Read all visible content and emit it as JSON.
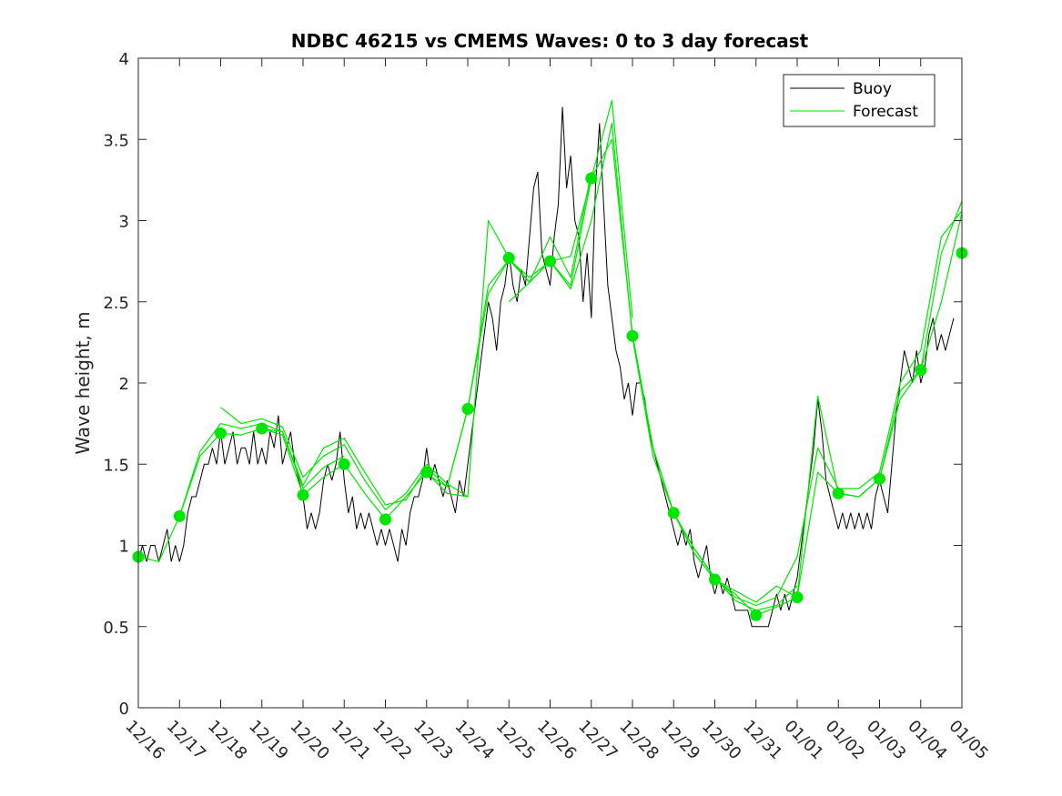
{
  "chart_data": {
    "type": "line",
    "title": "NDBC 46215 vs CMEMS Waves: 0 to 3 day forecast",
    "xlabel": "",
    "ylabel": "Wave height, m",
    "ylim": [
      0,
      4
    ],
    "xlim": [
      0,
      20
    ],
    "yticks": [
      0,
      0.5,
      1,
      1.5,
      2,
      2.5,
      3,
      3.5,
      4
    ],
    "ytick_labels": [
      "0",
      "0.5",
      "1",
      "1.5",
      "2",
      "2.5",
      "3",
      "3.5",
      "4"
    ],
    "xtick_labels": [
      "12/16",
      "12/17",
      "12/18",
      "12/19",
      "12/20",
      "12/21",
      "12/22",
      "12/23",
      "12/24",
      "12/25",
      "12/26",
      "12/27",
      "12/28",
      "12/29",
      "12/30",
      "12/31",
      "01/01",
      "01/02",
      "01/03",
      "01/04",
      "01/05"
    ],
    "grid": false,
    "legend": {
      "location": "top-right",
      "entries": [
        "Buoy",
        "Forecast"
      ]
    },
    "colors": {
      "buoy": "#000000",
      "forecast": "#00e600",
      "axes": "#262626"
    },
    "series": [
      {
        "name": "Buoy",
        "color": "#000000",
        "x": [
          0,
          0.1,
          0.2,
          0.3,
          0.4,
          0.5,
          0.6,
          0.7,
          0.8,
          0.9,
          1.0,
          1.1,
          1.2,
          1.3,
          1.4,
          1.5,
          1.6,
          1.7,
          1.8,
          1.9,
          2.0,
          2.1,
          2.2,
          2.3,
          2.4,
          2.5,
          2.6,
          2.7,
          2.8,
          2.9,
          3.0,
          3.1,
          3.2,
          3.3,
          3.4,
          3.5,
          3.6,
          3.7,
          3.8,
          3.9,
          4.0,
          4.1,
          4.2,
          4.3,
          4.4,
          4.5,
          4.6,
          4.7,
          4.8,
          4.9,
          5.0,
          5.1,
          5.2,
          5.3,
          5.4,
          5.5,
          5.6,
          5.7,
          5.8,
          5.9,
          6.0,
          6.1,
          6.2,
          6.3,
          6.4,
          6.5,
          6.6,
          6.7,
          6.8,
          6.9,
          7.0,
          7.1,
          7.2,
          7.3,
          7.4,
          7.5,
          7.6,
          7.7,
          7.8,
          7.9,
          8.0,
          8.1,
          8.2,
          8.3,
          8.4,
          8.5,
          8.6,
          8.7,
          8.8,
          8.9,
          9.0,
          9.1,
          9.2,
          9.3,
          9.4,
          9.5,
          9.6,
          9.7,
          9.8,
          9.9,
          10.0,
          10.1,
          10.2,
          10.3,
          10.4,
          10.5,
          10.6,
          10.7,
          10.8,
          10.9,
          11.0,
          11.1,
          11.2,
          11.3,
          11.4,
          11.5,
          11.6,
          11.7,
          11.8,
          11.9,
          12.0,
          12.1,
          12.2,
          12.3,
          12.4,
          12.5,
          12.6,
          12.7,
          12.8,
          12.9,
          13.0,
          13.1,
          13.2,
          13.3,
          13.4,
          13.5,
          13.6,
          13.7,
          13.8,
          13.9,
          14.0,
          14.1,
          14.2,
          14.3,
          14.4,
          14.5,
          14.6,
          14.7,
          14.8,
          14.9,
          15.0,
          15.1,
          15.2,
          15.3,
          15.4,
          15.5,
          15.6,
          15.7,
          15.8,
          15.9,
          16.0,
          16.1,
          16.2,
          16.3,
          16.4,
          16.5,
          16.6,
          16.7,
          16.8,
          16.9,
          17.0,
          17.1,
          17.2,
          17.3,
          17.4,
          17.5,
          17.6,
          17.7,
          17.8,
          17.9,
          18.0,
          18.1,
          18.2,
          18.3,
          18.4,
          18.5,
          18.6,
          18.7,
          18.8,
          18.9,
          19.0,
          19.1,
          19.2,
          19.3,
          19.4,
          19.5,
          19.6,
          19.7,
          19.8
        ],
        "values": [
          0.9,
          1.0,
          0.9,
          1.0,
          1.0,
          0.9,
          1.0,
          1.1,
          0.9,
          1.0,
          0.9,
          1.0,
          1.2,
          1.3,
          1.3,
          1.4,
          1.5,
          1.5,
          1.6,
          1.5,
          1.7,
          1.5,
          1.6,
          1.7,
          1.5,
          1.6,
          1.6,
          1.5,
          1.7,
          1.5,
          1.6,
          1.5,
          1.7,
          1.6,
          1.8,
          1.5,
          1.6,
          1.7,
          1.5,
          1.4,
          1.3,
          1.1,
          1.2,
          1.1,
          1.2,
          1.4,
          1.5,
          1.4,
          1.5,
          1.7,
          1.4,
          1.2,
          1.3,
          1.1,
          1.2,
          1.1,
          1.2,
          1.1,
          1.0,
          1.1,
          1.0,
          1.1,
          1.0,
          0.9,
          1.1,
          1.0,
          1.2,
          1.3,
          1.3,
          1.4,
          1.6,
          1.4,
          1.5,
          1.4,
          1.3,
          1.4,
          1.3,
          1.2,
          1.4,
          1.3,
          1.5,
          1.7,
          1.9,
          2.1,
          2.3,
          2.5,
          2.4,
          2.2,
          2.5,
          2.6,
          2.8,
          2.6,
          2.5,
          2.7,
          2.6,
          2.9,
          3.2,
          3.3,
          2.8,
          2.7,
          2.6,
          2.9,
          3.1,
          3.7,
          3.2,
          3.4,
          3.0,
          2.9,
          2.5,
          2.8,
          2.4,
          3.2,
          3.6,
          3.1,
          2.6,
          2.4,
          2.2,
          2.1,
          1.9,
          2.0,
          1.8,
          2.0,
          2.0,
          1.9,
          1.7,
          1.6,
          1.5,
          1.4,
          1.3,
          1.2,
          1.1,
          1.0,
          1.1,
          1.0,
          1.1,
          0.9,
          0.8,
          0.9,
          1.0,
          0.8,
          0.7,
          0.8,
          0.7,
          0.8,
          0.7,
          0.6,
          0.6,
          0.6,
          0.6,
          0.5,
          0.5,
          0.5,
          0.5,
          0.5,
          0.6,
          0.7,
          0.6,
          0.7,
          0.6,
          0.7,
          0.8,
          1.0,
          1.2,
          1.4,
          1.6,
          1.9,
          1.7,
          1.4,
          1.3,
          1.2,
          1.1,
          1.2,
          1.1,
          1.2,
          1.1,
          1.2,
          1.1,
          1.2,
          1.1,
          1.3,
          1.4,
          1.3,
          1.2,
          1.5,
          1.8,
          2.0,
          2.2,
          2.1,
          2.0,
          2.2,
          2.0,
          2.1,
          2.3,
          2.4,
          2.2,
          2.3,
          2.2,
          2.3,
          2.4
        ]
      },
      {
        "name": "Forecast",
        "color": "#00e600",
        "segments": [
          {
            "x": [
              0,
              0.5,
              1.0,
              1.5,
              2.0,
              2.5,
              3.0,
              3.5,
              4.0,
              4.5,
              5.0
            ],
            "values": [
              0.93,
              0.9,
              1.18,
              1.58,
              1.75,
              1.72,
              1.75,
              1.7,
              1.35,
              1.48,
              1.55
            ]
          },
          {
            "x": [
              1.0,
              1.5,
              2.0,
              2.5,
              3.0,
              3.5,
              4.0,
              4.5,
              5.0,
              5.5,
              6.0,
              6.5,
              7.0,
              7.5,
              8.0
            ],
            "values": [
              1.18,
              1.55,
              1.69,
              1.68,
              1.72,
              1.68,
              1.31,
              1.42,
              1.5,
              1.32,
              1.16,
              1.3,
              1.45,
              1.32,
              1.3
            ]
          },
          {
            "x": [
              2.0,
              2.5,
              3.0,
              3.5,
              4.0,
              4.5,
              5.0,
              5.5,
              6.0,
              6.5,
              7.0,
              7.5,
              8.0,
              8.5,
              9.0,
              9.5,
              10.0,
              10.5,
              11.0
            ],
            "values": [
              1.85,
              1.75,
              1.78,
              1.73,
              1.42,
              1.55,
              1.62,
              1.4,
              1.22,
              1.32,
              1.5,
              1.38,
              1.3,
              3.0,
              2.77,
              2.62,
              2.9,
              2.65,
              3.3
            ]
          },
          {
            "x": [
              3.0,
              3.5,
              4.0,
              4.5,
              5.0,
              5.5,
              6.0,
              6.5,
              7.0,
              7.5,
              8.0,
              8.5,
              9.0,
              9.5,
              10.0,
              10.5,
              11.0,
              11.5,
              12.0
            ],
            "values": [
              1.72,
              1.7,
              1.37,
              1.6,
              1.66,
              1.45,
              1.25,
              1.28,
              1.48,
              1.36,
              1.84,
              2.6,
              2.76,
              2.65,
              2.75,
              2.6,
              3.26,
              3.74,
              2.4
            ]
          },
          {
            "x": [
              7.0,
              7.5,
              8.0,
              8.5,
              9.0,
              9.5,
              10.0,
              10.5,
              11.0,
              11.5,
              12.0,
              12.5,
              13.0,
              13.5,
              14.0,
              14.5,
              15.0,
              15.5,
              16.0
            ],
            "values": [
              1.44,
              1.36,
              1.84,
              2.55,
              2.76,
              2.62,
              2.75,
              2.78,
              3.26,
              3.5,
              2.3,
              1.6,
              1.2,
              0.95,
              0.79,
              0.7,
              0.57,
              0.62,
              0.68
            ]
          },
          {
            "x": [
              9.0,
              9.5,
              10.0,
              10.5,
              11.0,
              11.5,
              12.0,
              12.5,
              13.0,
              13.5,
              14.0,
              14.5,
              15.0,
              15.5,
              16.0
            ],
            "values": [
              2.5,
              2.62,
              2.75,
              2.58,
              3.0,
              3.6,
              2.28,
              1.55,
              1.2,
              0.98,
              0.8,
              0.66,
              0.6,
              0.63,
              0.75
            ]
          },
          {
            "x": [
              12.0,
              12.5,
              13.0,
              13.5,
              14.0,
              14.5,
              15.0,
              15.5,
              16.0,
              16.5,
              17.0,
              17.5,
              18.0,
              18.5,
              19.0,
              19.5,
              20.0
            ],
            "values": [
              2.3,
              1.6,
              1.2,
              0.95,
              0.79,
              0.72,
              0.65,
              0.75,
              0.68,
              1.92,
              1.32,
              1.3,
              1.41,
              1.95,
              2.08,
              2.8,
              3.12
            ]
          },
          {
            "x": [
              13.0,
              13.5,
              14.0,
              14.5,
              15.0,
              15.5,
              16.0,
              16.5,
              17.0,
              17.5,
              18.0,
              18.5,
              19.0,
              19.5,
              20.0
            ],
            "values": [
              1.2,
              0.98,
              0.8,
              0.68,
              0.63,
              0.68,
              0.93,
              1.6,
              1.35,
              1.35,
              1.45,
              2.0,
              2.2,
              2.9,
              3.06
            ]
          },
          {
            "x": [
              16.0,
              16.5,
              17.0,
              17.5,
              18.0,
              18.5,
              19.0,
              19.5,
              20.0
            ],
            "values": [
              0.68,
              1.45,
              1.32,
              1.3,
              1.41,
              1.9,
              2.08,
              2.5,
              3.05
            ]
          }
        ],
        "markers": {
          "x": [
            0,
            1,
            2,
            3,
            4,
            5,
            6,
            7,
            8,
            9,
            10,
            11,
            12,
            13,
            14,
            15,
            16,
            17,
            18,
            19,
            20
          ],
          "values": [
            0.93,
            1.18,
            1.69,
            1.72,
            1.31,
            1.5,
            1.16,
            1.45,
            1.84,
            2.77,
            2.75,
            3.26,
            2.29,
            1.2,
            0.79,
            0.57,
            0.68,
            1.32,
            1.41,
            2.08,
            2.8
          ]
        }
      }
    ]
  }
}
